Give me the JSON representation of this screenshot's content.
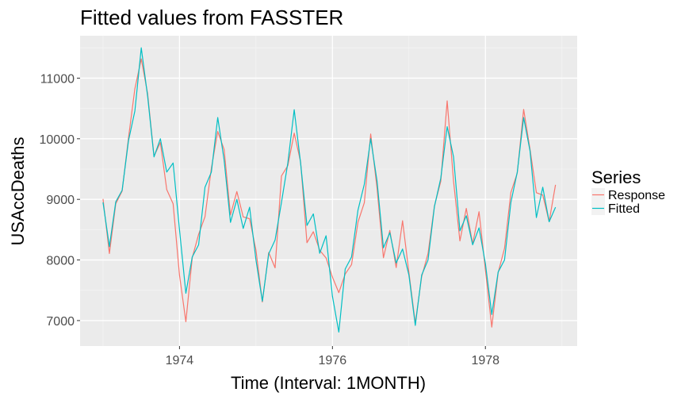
{
  "chart_data": {
    "type": "line",
    "title": "Fitted values from FASSTER",
    "xlabel": "Time (Interval: 1MONTH)",
    "ylabel": "USAccDeaths",
    "x_start": 1973.0,
    "x_step": 0.08333333,
    "xlim": [
      1972.7,
      1979.2
    ],
    "ylim": [
      6580,
      11700
    ],
    "xticks": [
      1974,
      1976,
      1978
    ],
    "xtick_labels": [
      "1974",
      "1976",
      "1978"
    ],
    "yticks": [
      7000,
      8000,
      9000,
      10000,
      11000
    ],
    "ytick_labels": [
      "7000",
      "8000",
      "9000",
      "10000",
      "11000"
    ],
    "grid": true,
    "legend": {
      "title": "Series",
      "placement": "right"
    },
    "series": [
      {
        "name": "Response",
        "color": "#F8766D",
        "values": [
          9007,
          8106,
          8928,
          9137,
          10017,
          10826,
          11317,
          10744,
          9713,
          9938,
          9161,
          8927,
          7750,
          6981,
          8038,
          8422,
          8714,
          9512,
          10120,
          9823,
          8743,
          9129,
          8710,
          8680,
          8162,
          7306,
          8124,
          7870,
          9387,
          9556,
          10093,
          9620,
          8285,
          8466,
          8160,
          8034,
          7717,
          7461,
          7767,
          7925,
          8623,
          8945,
          10078,
          9179,
          8037,
          8488,
          7874,
          8647,
          7792,
          6957,
          7726,
          8106,
          8890,
          9299,
          10625,
          9302,
          8314,
          8850,
          8265,
          8796,
          7836,
          6892,
          7791,
          8192,
          9115,
          9434,
          10484,
          9827,
          9110,
          9070,
          8633,
          9240
        ]
      },
      {
        "name": "Fitted",
        "color": "#00BFC4",
        "values": [
          8950,
          8220,
          8960,
          9150,
          9970,
          10460,
          11500,
          10700,
          9700,
          10000,
          9450,
          9600,
          8500,
          7450,
          8050,
          8250,
          9200,
          9450,
          10350,
          9650,
          8620,
          9000,
          8520,
          8870,
          8000,
          7320,
          8100,
          8330,
          8950,
          9600,
          10480,
          9600,
          8570,
          8760,
          8110,
          8400,
          7400,
          6810,
          7850,
          8050,
          8820,
          9250,
          10000,
          9300,
          8200,
          8450,
          7950,
          8180,
          7750,
          6920,
          7750,
          8000,
          8880,
          9350,
          10200,
          9700,
          8480,
          8730,
          8250,
          8530,
          7940,
          7100,
          7800,
          8000,
          8950,
          9450,
          10350,
          9800,
          8700,
          9200,
          8630,
          8870
        ]
      }
    ]
  }
}
